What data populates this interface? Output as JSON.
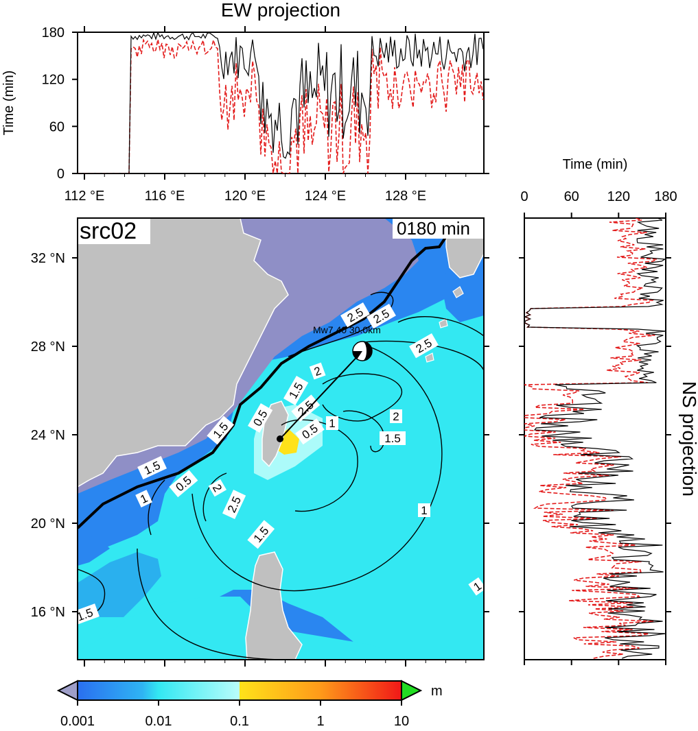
{
  "ew_panel": {
    "title": "EW projection",
    "ylabel": "Time (min)",
    "yticks": [
      "0",
      "60",
      "120",
      "180"
    ],
    "xticks": [
      "112 °E",
      "116 °E",
      "120 °E",
      "124 °E",
      "128 °E"
    ]
  },
  "ns_panel": {
    "title": "NS projection",
    "xlabel": "Time (min)",
    "xticks": [
      "0",
      "60",
      "120",
      "180"
    ]
  },
  "map": {
    "source_label": "src02",
    "time_label": "0180 min",
    "event_label": "Mw7.40 30.0km",
    "lat_ticks": [
      "32 °N",
      "28 °N",
      "24 °N",
      "20 °N",
      "16 °N"
    ],
    "contour_labels": [
      "2.5",
      "2.5",
      "2.5",
      "2",
      "1.5",
      "1.5",
      "0.5",
      "0.5",
      "1",
      "2",
      "1.5",
      "1.5",
      "0.5",
      "2",
      "1",
      "2.5",
      "1.5",
      "1",
      "1",
      "1.5",
      "2.5"
    ]
  },
  "colorbar": {
    "unit": "m",
    "tick_labels": [
      "0.001",
      "0.01",
      "0.1",
      "1",
      "10"
    ],
    "colors": {
      "below_min": "#9e9ec8",
      "c1": "#2a86f0",
      "c2": "#33e8f2",
      "c3": "#b9fdfb",
      "c4": "#ffe21a",
      "c5": "#ff9a1a",
      "c6": "#f01818",
      "above_max": "#22dd22"
    }
  },
  "map_colors": {
    "land": "#c0c0c0",
    "land_dry": "#8f8fc6",
    "sea_far": "#2a86f0",
    "sea_mid": "#33e8f2",
    "sea_near": "#ffe21a"
  }
}
